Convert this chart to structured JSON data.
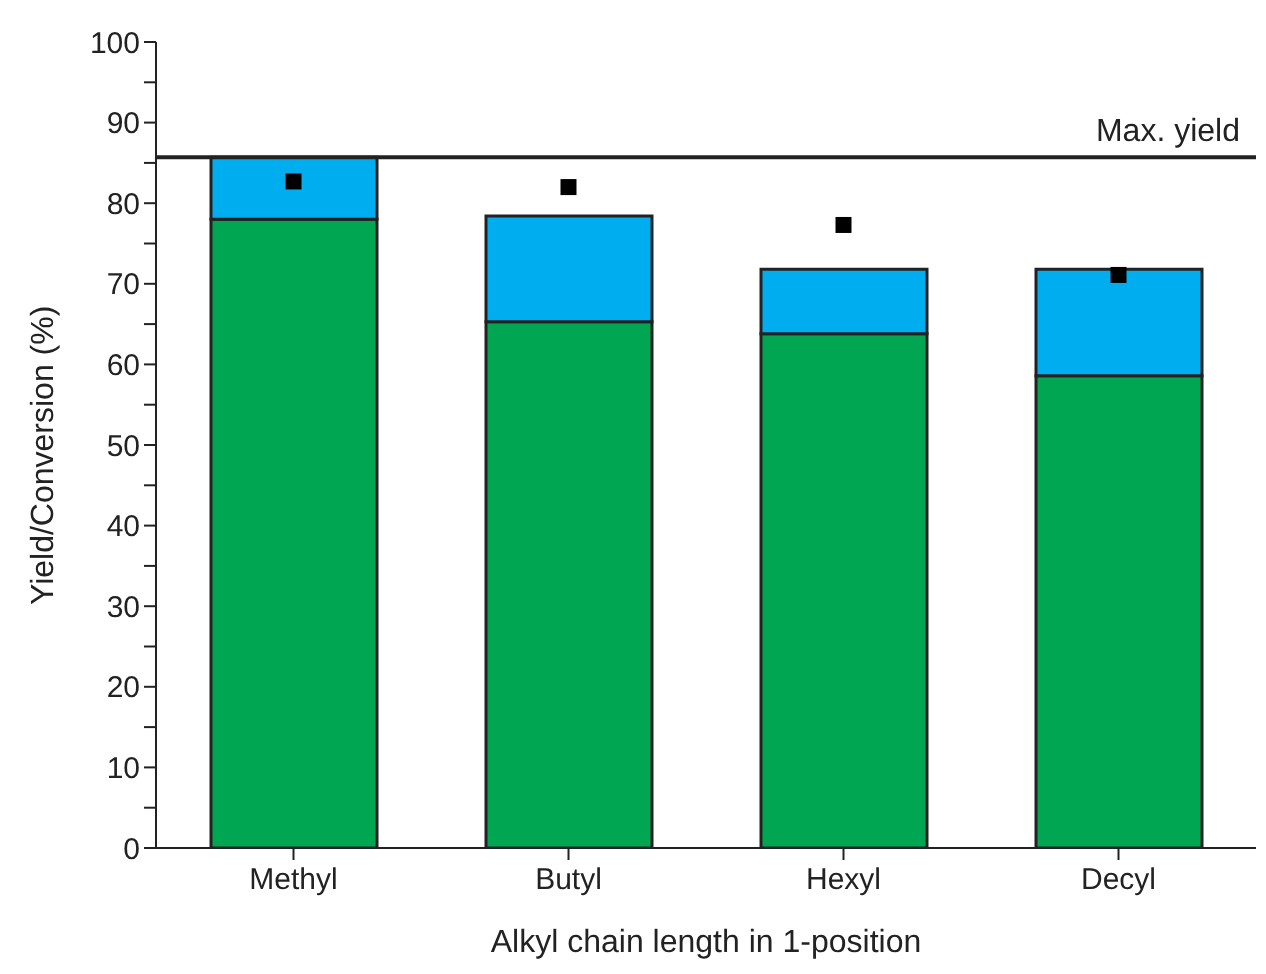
{
  "chart_data": {
    "type": "bar",
    "xlabel": "Alkyl chain length in 1-position",
    "ylabel": "Yield/Conversion (%)",
    "categories": [
      "Methyl",
      "Butyl",
      "Hexyl",
      "Decyl"
    ],
    "stacked": true,
    "series": [
      {
        "color": "#00a651",
        "values": [
          78,
          65.3,
          63.8,
          58.6
        ]
      },
      {
        "color": "#00aeef",
        "values": [
          7.7,
          13.1,
          8.0,
          13.2
        ]
      },
      {
        "type": "scatter",
        "color": "#000000",
        "marker": "square",
        "x": [
          "Methyl",
          "Butyl",
          "Hexyl",
          "Decyl"
        ],
        "values": [
          82.7,
          82,
          77.3,
          71.1
        ]
      }
    ],
    "ylim": [
      0,
      100
    ],
    "yticks": [
      0,
      {
        "value": 5,
        "label": null
      },
      10,
      {
        "value": 15,
        "label": null
      },
      20,
      {
        "value": 25,
        "label": null
      },
      30,
      {
        "value": 35,
        "label": null
      },
      40,
      {
        "value": 45,
        "label": null
      },
      50,
      {
        "value": 55,
        "label": null
      },
      60,
      {
        "value": 65,
        "label": null
      },
      70,
      {
        "value": 75,
        "label": null
      },
      80,
      {
        "value": 85,
        "label": null
      },
      90,
      {
        "value": 95,
        "label": null
      },
      100
    ],
    "ref_lines": [
      {
        "axis": "y",
        "value": 85.7,
        "label": "Max. yield",
        "color": "#222222"
      }
    ],
    "grid": false,
    "legend": false
  }
}
